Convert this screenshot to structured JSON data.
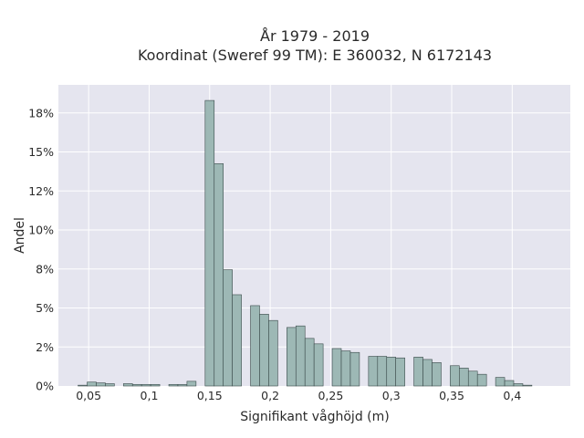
{
  "chart_data": {
    "type": "bar",
    "title": "År 1979 - 2019",
    "subtitle": "Koordinat (Sweref 99 TM): E 360032, N 6172143",
    "xlabel": "Signifikant våghöjd (m)",
    "ylabel": "Andel",
    "xlim": [
      0.025,
      0.448
    ],
    "ylim": [
      0,
      0.193
    ],
    "x_ticks": [
      0.05,
      0.1,
      0.15,
      0.2,
      0.25,
      0.3,
      0.35,
      0.4
    ],
    "x_tick_labels": [
      "0,05",
      "0,1",
      "0,15",
      "0,2",
      "0,25",
      "0,3",
      "0,35",
      "0,4"
    ],
    "y_ticks": [
      0,
      0.025,
      0.05,
      0.075,
      0.1,
      0.125,
      0.15,
      0.175
    ],
    "y_tick_labels": [
      "0%",
      "2%",
      "5%",
      "8%",
      "10%",
      "12%",
      "15%",
      "18%"
    ],
    "grid": true,
    "bin_width": 0.0075,
    "bins_x": [
      0.045,
      0.0525,
      0.06,
      0.0675,
      0.075,
      0.0825,
      0.09,
      0.0975,
      0.105,
      0.1125,
      0.12,
      0.1275,
      0.135,
      0.1425,
      0.15,
      0.1575,
      0.165,
      0.1725,
      0.18,
      0.1875,
      0.195,
      0.2025,
      0.21,
      0.2175,
      0.225,
      0.2325,
      0.24,
      0.2475,
      0.255,
      0.2625,
      0.27,
      0.2775,
      0.285,
      0.2925,
      0.3,
      0.3075,
      0.315,
      0.3225,
      0.33,
      0.3375,
      0.345,
      0.3525,
      0.36,
      0.3675,
      0.375,
      0.3825,
      0.39,
      0.3975,
      0.405,
      0.4125,
      0.42,
      0.4275
    ],
    "values": [
      0.0005,
      0.0025,
      0.002,
      0.0015,
      0.0,
      0.0015,
      0.001,
      0.001,
      0.001,
      0.0,
      0.001,
      0.001,
      0.003,
      0.0,
      0.183,
      0.1425,
      0.0745,
      0.0585,
      0.0,
      0.0515,
      0.046,
      0.042,
      0.0,
      0.0375,
      0.0385,
      0.0305,
      0.027,
      0.0,
      0.024,
      0.0225,
      0.0215,
      0.0,
      0.019,
      0.019,
      0.0185,
      0.018,
      0.0,
      0.0185,
      0.017,
      0.015,
      0.0,
      0.013,
      0.0115,
      0.0095,
      0.0075,
      0.0,
      0.0055,
      0.0035,
      0.0015,
      0.0005,
      0.0,
      0.0
    ]
  },
  "colors": {
    "plot_background": "#e5e5ef",
    "gridline": "#ffffff",
    "bar_fill": "#9db8b5",
    "bar_stroke": "#3a4a4a"
  }
}
